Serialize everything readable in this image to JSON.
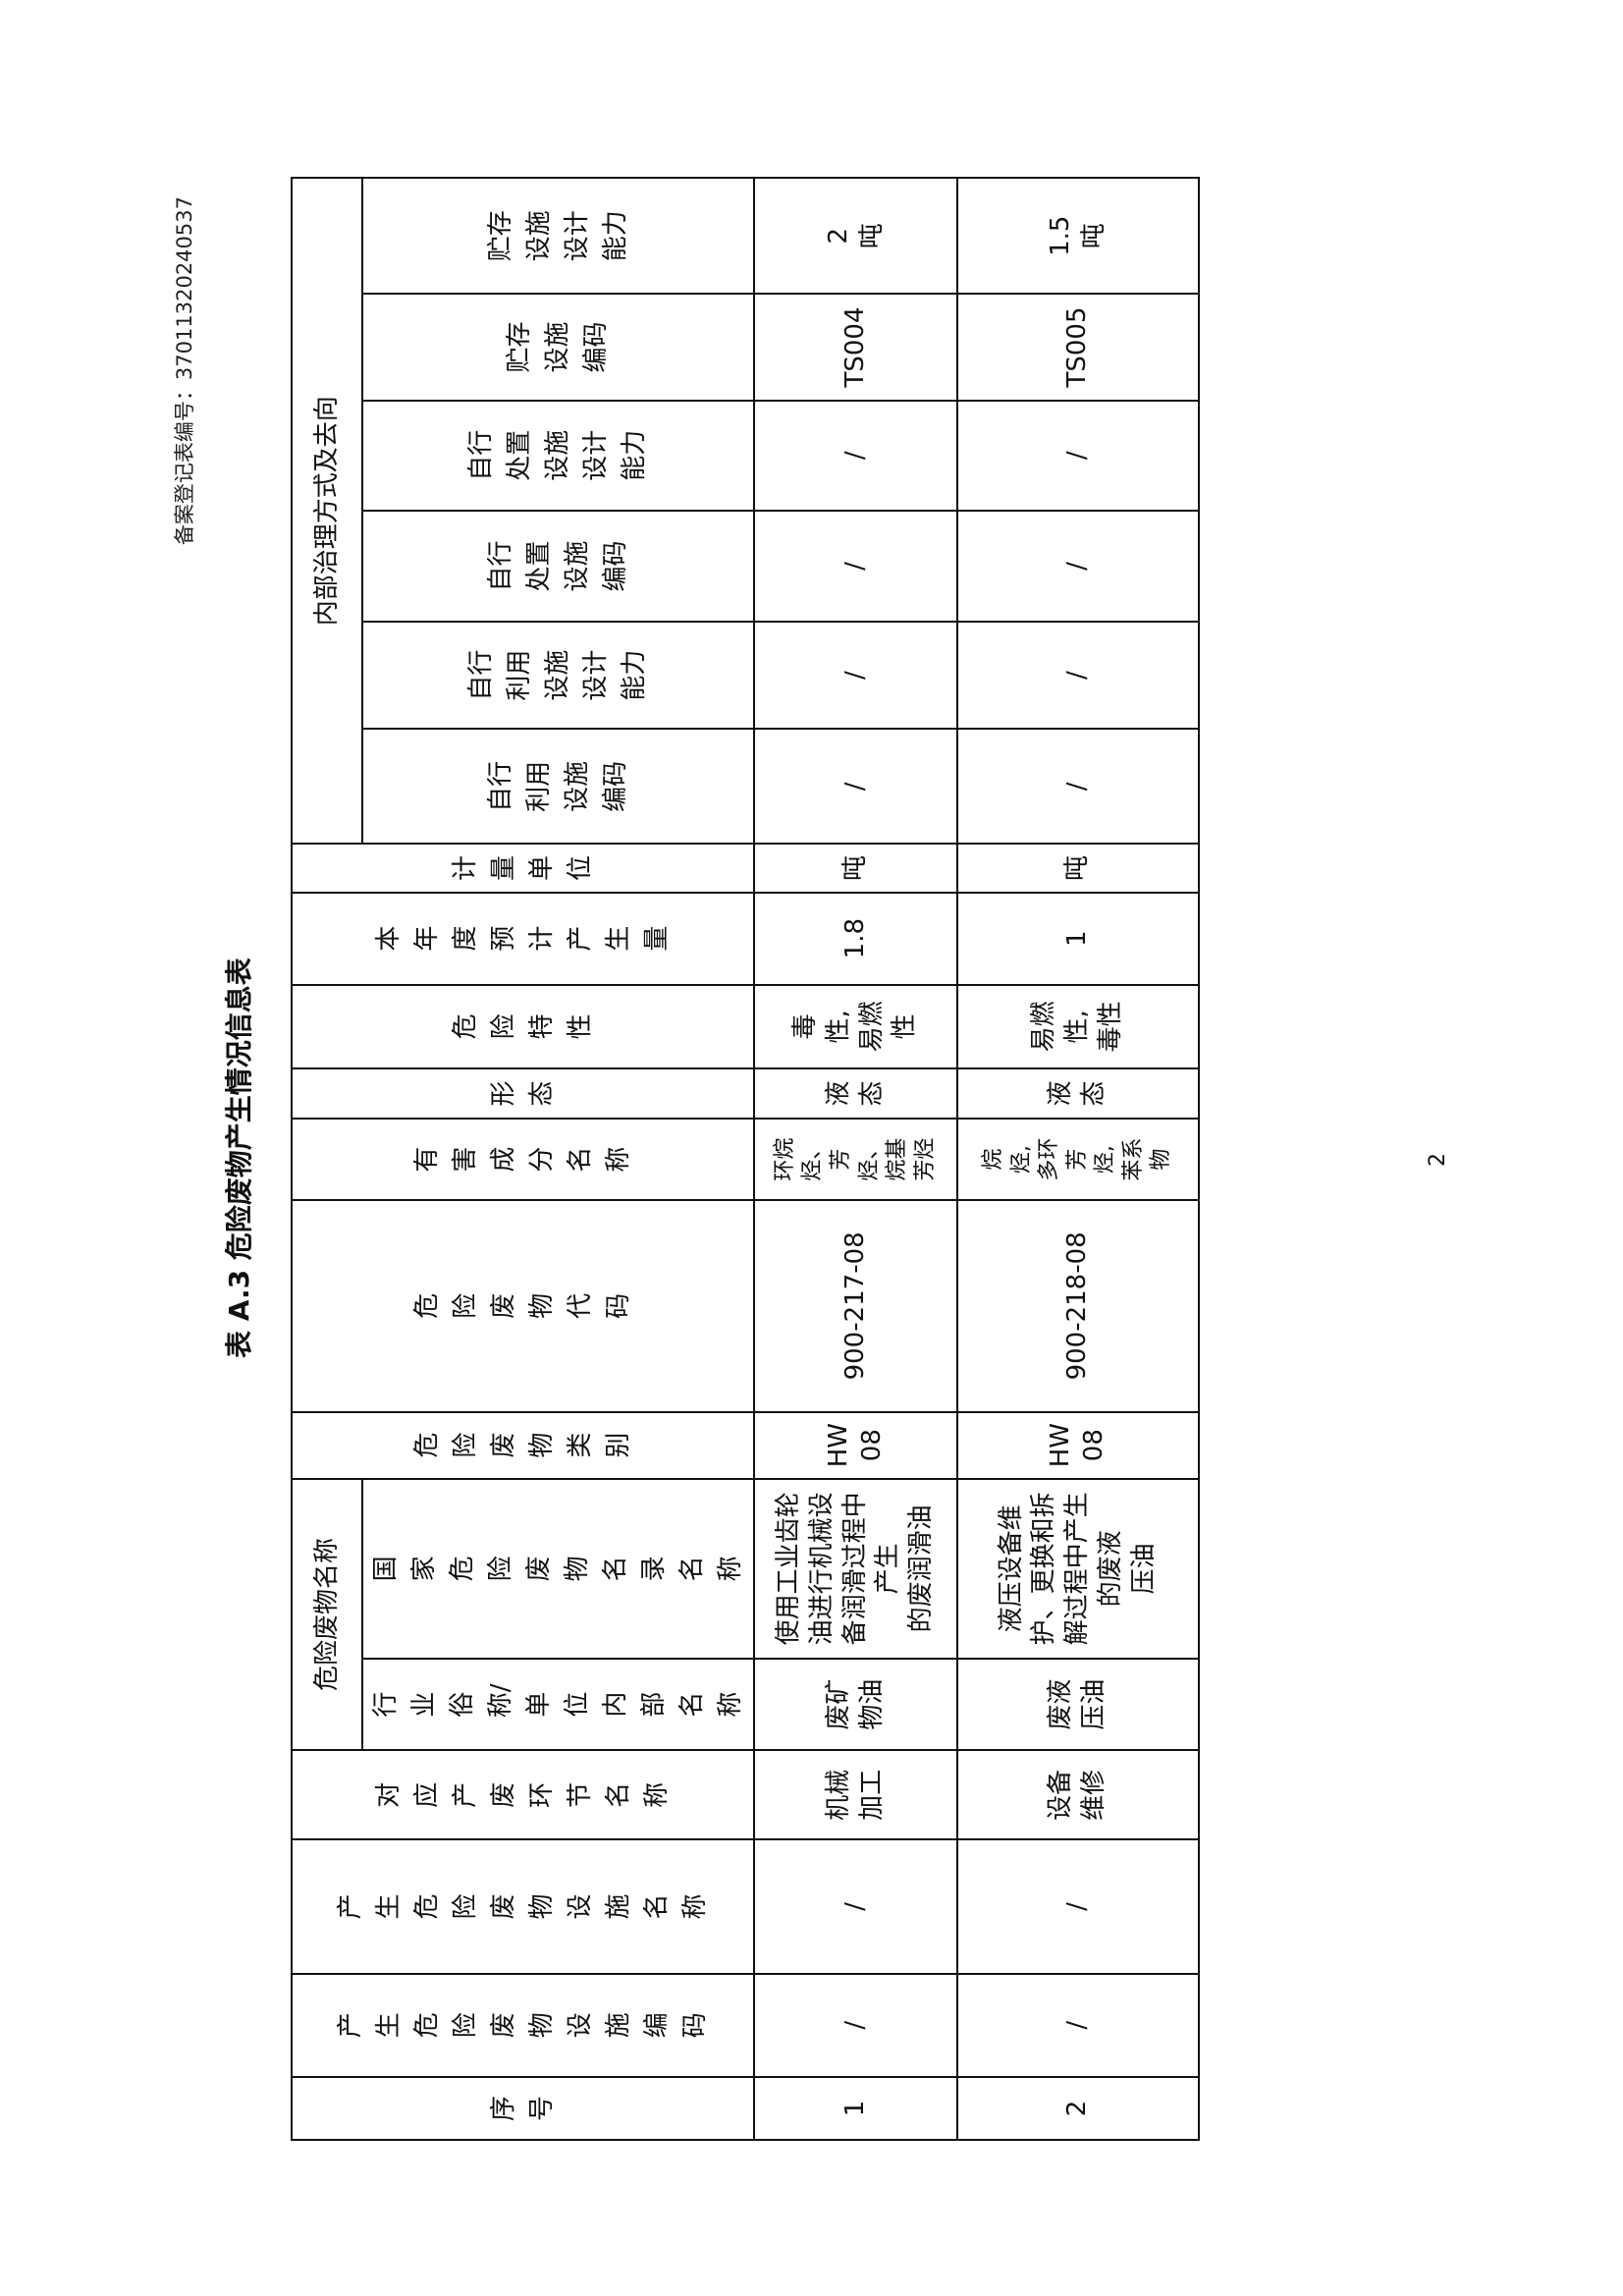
{
  "registration_no": "备案登记表编号：37011320240537",
  "title": "表 A.3 危险废物产生情况信息表",
  "page_number": "2",
  "header": {
    "group_name": "危险废物名称",
    "group_internal": "内部治理方式及去向",
    "seq": "序号",
    "facility_code": "产生危险废物设施编码",
    "facility_name": "产生危险废物设施名称",
    "process": "对应产废环节名称",
    "industry_name": "行业俗称/单位内部名称",
    "national_name": "国家危险废物名录名称",
    "category": "危险废物类别",
    "code": "危险废物代码",
    "harmful": "有害成分名称",
    "form": "形态",
    "hazard": "危险特性",
    "amount": "本年度预计产生量",
    "unit": "计量单位",
    "reuse_code": "自行利用设施编码",
    "reuse_cap": "自行利用设施设计能力",
    "dispose_code": "自行处置设施编码",
    "dispose_cap": "自行处置设施设计能力",
    "store_code": "贮存设施编码",
    "store_cap": "贮存设施设计能力"
  },
  "rows": [
    {
      "seq": "1",
      "facility_code": "/",
      "facility_name": "/",
      "process": "机械\n加工",
      "industry_name": "废矿\n物油",
      "national_name": "使用工业齿轮\n油进行机械设\n备润滑过程中\n产生\n的废润滑油",
      "category": "HW\n08",
      "code": "900-217-08",
      "harmful": "环烷\n烃、\n芳\n烃、\n烷基\n芳烃",
      "form": "液\n态",
      "hazard": "毒\n性,\n易燃\n性",
      "amount": "1.8",
      "unit": "吨",
      "reuse_code": "/",
      "reuse_cap": "/",
      "dispose_code": "/",
      "dispose_cap": "/",
      "store_code": "TS004",
      "store_cap": "2\n吨"
    },
    {
      "seq": "2",
      "facility_code": "/",
      "facility_name": "/",
      "process": "设备\n维修",
      "industry_name": "废液\n压油",
      "national_name": "液压设备维\n护、更换和拆\n解过程中产生\n的废液\n压油",
      "category": "HW\n08",
      "code": "900-218-08",
      "harmful": "烷\n烃,\n多环\n芳\n烃,\n苯系\n物",
      "form": "液\n态",
      "hazard": "易燃\n性,\n毒性",
      "amount": "1",
      "unit": "吨",
      "reuse_code": "/",
      "reuse_cap": "/",
      "dispose_code": "/",
      "dispose_cap": "/",
      "store_code": "TS005",
      "store_cap": "1.5\n吨"
    }
  ]
}
